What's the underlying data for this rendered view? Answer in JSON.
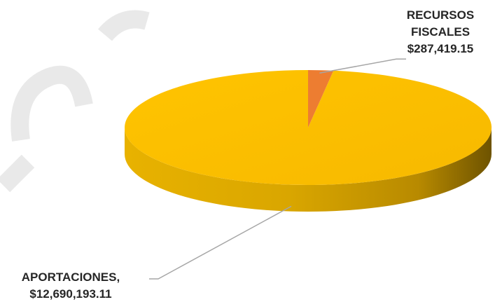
{
  "chart_data": {
    "type": "pie",
    "style": "3d",
    "title": "",
    "slices": [
      {
        "label_lines": [
          "RECURSOS",
          "FISCALES"
        ],
        "value_text": "$287,419.15",
        "value": 287419.15,
        "color": "#ED7D31"
      },
      {
        "label_lines": [
          "APORTACIONES,"
        ],
        "value_text": "$12,690,193.11",
        "value": 12690193.11,
        "color": "#FFC000"
      }
    ],
    "legend": "none"
  }
}
